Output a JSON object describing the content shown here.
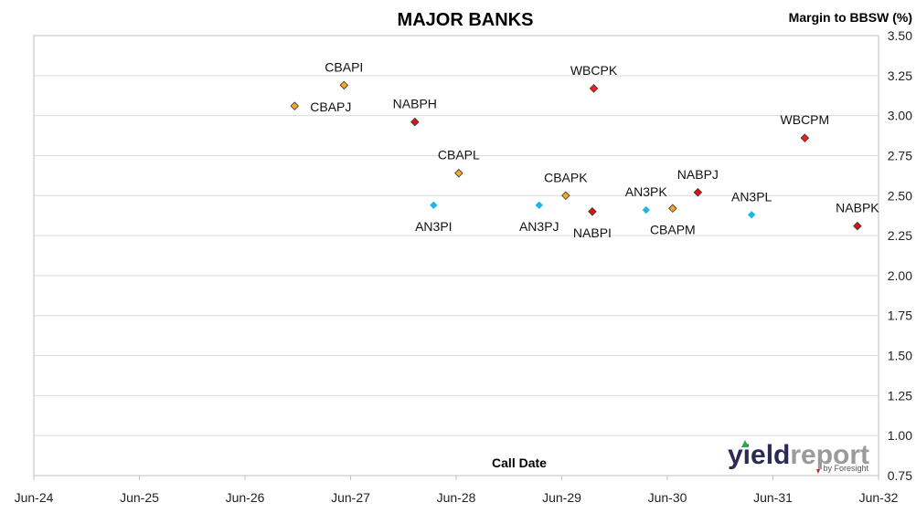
{
  "chart_data": {
    "type": "scatter",
    "title": "MAJOR BANKS",
    "xlabel": "Call Date",
    "ylabel": "Margin to BBSW (%)",
    "ylim": [
      0.75,
      3.5
    ],
    "y_ticks": [
      "0.75",
      "1.00",
      "1.25",
      "1.50",
      "1.75",
      "2.00",
      "2.25",
      "2.50",
      "2.75",
      "3.00",
      "3.25",
      "3.50"
    ],
    "xlim": [
      "2024-06-01",
      "2032-06-01"
    ],
    "x_ticks": [
      "Jun-24",
      "Jun-25",
      "Jun-26",
      "Jun-27",
      "Jun-28",
      "Jun-29",
      "Jun-30",
      "Jun-31",
      "Jun-32"
    ],
    "grid": true,
    "legend": "none",
    "series": [
      {
        "color": "#f5a623",
        "points": [
          {
            "label": "CBAPJ",
            "x": "2026-11-20",
            "y": 3.06
          },
          {
            "label": "CBAPI",
            "x": "2027-05-10",
            "y": 3.19
          },
          {
            "label": "CBAPL",
            "x": "2028-06-10",
            "y": 2.64
          },
          {
            "label": "CBAPK",
            "x": "2029-06-15",
            "y": 2.5
          },
          {
            "label": "CBAPM",
            "x": "2030-06-20",
            "y": 2.42
          }
        ]
      },
      {
        "color": "#e01010",
        "points": [
          {
            "label": "NABPH",
            "x": "2028-01-10",
            "y": 2.96
          },
          {
            "label": "NABPI",
            "x": "2029-09-15",
            "y": 2.4
          },
          {
            "label": "NABPJ",
            "x": "2030-09-15",
            "y": 2.52
          },
          {
            "label": "NABPK",
            "x": "2032-03-20",
            "y": 2.31
          }
        ]
      },
      {
        "color": "#ff1a1a",
        "points": [
          {
            "label": "WBCPK",
            "x": "2029-09-20",
            "y": 3.17
          },
          {
            "label": "WBCPM",
            "x": "2031-09-20",
            "y": 2.86
          }
        ]
      },
      {
        "color": "#1fb5e8",
        "points": [
          {
            "label": "AN3PI",
            "x": "2028-03-15",
            "y": 2.44
          },
          {
            "label": "AN3PJ",
            "x": "2029-03-15",
            "y": 2.44
          },
          {
            "label": "AN3PK",
            "x": "2030-03-20",
            "y": 2.41
          },
          {
            "label": "AN3PL",
            "x": "2031-03-20",
            "y": 2.38
          }
        ]
      }
    ]
  },
  "branding": {
    "logo_text_a": "yield",
    "logo_text_b": "report",
    "logo_sub": "by Foresight"
  }
}
